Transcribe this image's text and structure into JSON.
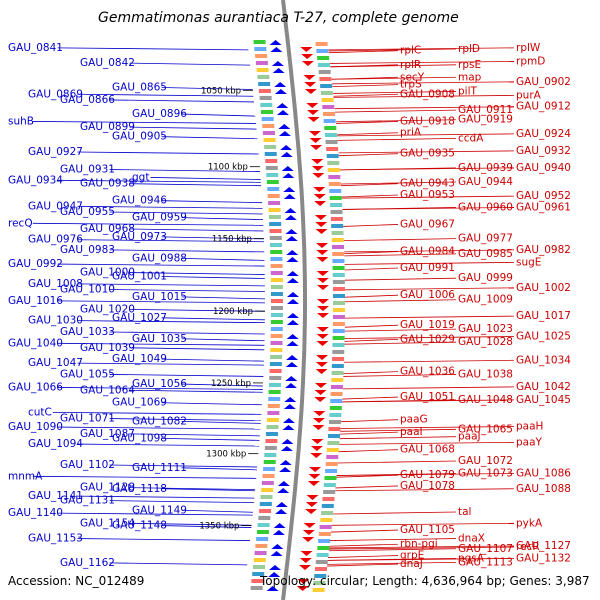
{
  "title": "Gemmatimonas aurantiaca T-27, complete genome",
  "accession": "Accession: NC_012489",
  "summary": "Topology: circular; Length: 4,636,964 bp; Genes: 3,987",
  "colors": {
    "left": "#0000cc",
    "right": "#cc0000",
    "backbone": "#888888"
  },
  "kbp_marks": [
    {
      "label": "1050 kbp",
      "t": 0.103
    },
    {
      "label": "1100 kbp",
      "t": 0.238
    },
    {
      "label": "1150 kbp",
      "t": 0.365
    },
    {
      "label": "1200 kbp",
      "t": 0.493
    },
    {
      "label": "1250 kbp",
      "t": 0.62
    },
    {
      "label": "1300 kbp",
      "t": 0.745
    },
    {
      "label": "1350 kbp",
      "t": 0.872
    }
  ],
  "left_labels": [
    {
      "text": "GAU_0841",
      "t": 0.028
    },
    {
      "text": "GAU_0842",
      "t": 0.055
    },
    {
      "text": "GAU_0865",
      "t": 0.098
    },
    {
      "text": "GAU_0869",
      "t": 0.11
    },
    {
      "text": "GAU_0866",
      "t": 0.12
    },
    {
      "text": "GAU_0896",
      "t": 0.145
    },
    {
      "text": "suhB",
      "t": 0.158
    },
    {
      "text": "GAU_0899",
      "t": 0.168
    },
    {
      "text": "GAU_0905",
      "t": 0.185
    },
    {
      "text": "GAU_0927",
      "t": 0.212
    },
    {
      "text": "GAU_0931",
      "t": 0.243
    },
    {
      "text": "ggt",
      "t": 0.257
    },
    {
      "text": "GAU_0934",
      "t": 0.262
    },
    {
      "text": "GAU_0938",
      "t": 0.268
    },
    {
      "text": "GAU_0946",
      "t": 0.298
    },
    {
      "text": "GAU_0947",
      "t": 0.308
    },
    {
      "text": "GAU_0955",
      "t": 0.318
    },
    {
      "text": "GAU_0959",
      "t": 0.328
    },
    {
      "text": "recQ",
      "t": 0.338
    },
    {
      "text": "GAU_0968",
      "t": 0.348
    },
    {
      "text": "GAU_0973",
      "t": 0.362
    },
    {
      "text": "GAU_0976",
      "t": 0.367
    },
    {
      "text": "GAU_0983",
      "t": 0.385
    },
    {
      "text": "GAU_0988",
      "t": 0.4
    },
    {
      "text": "GAU_0992",
      "t": 0.41
    },
    {
      "text": "GAU_1000",
      "t": 0.425
    },
    {
      "text": "GAU_1001",
      "t": 0.432
    },
    {
      "text": "GAU_1008",
      "t": 0.445
    },
    {
      "text": "GAU_1010",
      "t": 0.455
    },
    {
      "text": "GAU_1015",
      "t": 0.468
    },
    {
      "text": "GAU_1016",
      "t": 0.475
    },
    {
      "text": "GAU_1020",
      "t": 0.49
    },
    {
      "text": "GAU_1027",
      "t": 0.505
    },
    {
      "text": "GAU_1030",
      "t": 0.51
    },
    {
      "text": "GAU_1033",
      "t": 0.53
    },
    {
      "text": "GAU_1035",
      "t": 0.542
    },
    {
      "text": "GAU_1040",
      "t": 0.55
    },
    {
      "text": "GAU_1039",
      "t": 0.558
    },
    {
      "text": "GAU_1049",
      "t": 0.578
    },
    {
      "text": "GAU_1047",
      "t": 0.585
    },
    {
      "text": "GAU_1055",
      "t": 0.605
    },
    {
      "text": "GAU_1056",
      "t": 0.622
    },
    {
      "text": "GAU_1066",
      "t": 0.628
    },
    {
      "text": "GAU_1064",
      "t": 0.633
    },
    {
      "text": "GAU_1069",
      "t": 0.655
    },
    {
      "text": "cutC",
      "t": 0.672
    },
    {
      "text": "GAU_1071",
      "t": 0.683
    },
    {
      "text": "GAU_1082",
      "t": 0.688
    },
    {
      "text": "GAU_1090",
      "t": 0.698
    },
    {
      "text": "GAU_1087",
      "t": 0.71
    },
    {
      "text": "GAU_1098",
      "t": 0.718
    },
    {
      "text": "GAU_1094",
      "t": 0.728
    },
    {
      "text": "GAU_1102",
      "t": 0.765
    },
    {
      "text": "GAU_1111",
      "t": 0.77
    },
    {
      "text": "mnmA",
      "t": 0.785
    },
    {
      "text": "GAU_1128",
      "t": 0.805
    },
    {
      "text": "GAU_1118",
      "t": 0.807
    },
    {
      "text": "GAU_1141",
      "t": 0.82
    },
    {
      "text": "GAU_1131",
      "t": 0.828
    },
    {
      "text": "GAU_1149",
      "t": 0.845
    },
    {
      "text": "GAU_1140",
      "t": 0.85
    },
    {
      "text": "GAU_1154",
      "t": 0.868
    },
    {
      "text": "GAU_1148",
      "t": 0.872
    },
    {
      "text": "GAU_1153",
      "t": 0.895
    },
    {
      "text": "GAU_1162",
      "t": 0.938
    }
  ],
  "right_labels": [
    {
      "text": "rplC",
      "t": 0.033
    },
    {
      "text": "rplD",
      "t": 0.03
    },
    {
      "text": "rplW",
      "t": 0.028
    },
    {
      "text": "rplR",
      "t": 0.058
    },
    {
      "text": "rpsE",
      "t": 0.058
    },
    {
      "text": "rpmD",
      "t": 0.052
    },
    {
      "text": "secY",
      "t": 0.08
    },
    {
      "text": "map",
      "t": 0.08
    },
    {
      "text": "GAU_0902",
      "t": 0.088
    },
    {
      "text": "trpS",
      "t": 0.093
    },
    {
      "text": "pilT",
      "t": 0.105
    },
    {
      "text": "purA",
      "t": 0.112
    },
    {
      "text": "GAU_0908",
      "t": 0.11
    },
    {
      "text": "GAU_0911",
      "t": 0.138
    },
    {
      "text": "GAU_0912",
      "t": 0.132
    },
    {
      "text": "GAU_0918",
      "t": 0.158
    },
    {
      "text": "GAU_0919",
      "t": 0.155
    },
    {
      "text": "GAU_0924",
      "t": 0.18
    },
    {
      "text": "priA",
      "t": 0.178
    },
    {
      "text": "ccdA",
      "t": 0.188
    },
    {
      "text": "GAU_0932",
      "t": 0.21
    },
    {
      "text": "GAU_0935",
      "t": 0.215
    },
    {
      "text": "GAU_0939",
      "t": 0.24
    },
    {
      "text": "GAU_0940",
      "t": 0.24
    },
    {
      "text": "GAU_0943",
      "t": 0.268
    },
    {
      "text": "GAU_0944",
      "t": 0.265
    },
    {
      "text": "GAU_0952",
      "t": 0.29
    },
    {
      "text": "GAU_0953",
      "t": 0.288
    },
    {
      "text": "GAU_0960",
      "t": 0.31
    },
    {
      "text": "GAU_0961",
      "t": 0.31
    },
    {
      "text": "GAU_0967",
      "t": 0.34
    },
    {
      "text": "GAU_0977",
      "t": 0.365
    },
    {
      "text": "GAU_0982",
      "t": 0.385
    },
    {
      "text": "GAU_0984",
      "t": 0.388
    },
    {
      "text": "GAU_0985",
      "t": 0.392
    },
    {
      "text": "sugE",
      "t": 0.407
    },
    {
      "text": "GAU_0991",
      "t": 0.417
    },
    {
      "text": "GAU_0999",
      "t": 0.435
    },
    {
      "text": "GAU_1002",
      "t": 0.452
    },
    {
      "text": "GAU_1006",
      "t": 0.465
    },
    {
      "text": "GAU_1009",
      "t": 0.473
    },
    {
      "text": "GAU_1017",
      "t": 0.502
    },
    {
      "text": "GAU_1019",
      "t": 0.518
    },
    {
      "text": "GAU_1023",
      "t": 0.525
    },
    {
      "text": "GAU_1025",
      "t": 0.538
    },
    {
      "text": "GAU_1029",
      "t": 0.543
    },
    {
      "text": "GAU_1028",
      "t": 0.548
    },
    {
      "text": "GAU_1034",
      "t": 0.58
    },
    {
      "text": "GAU_1036",
      "t": 0.6
    },
    {
      "text": "GAU_1038",
      "t": 0.605
    },
    {
      "text": "GAU_1042",
      "t": 0.627
    },
    {
      "text": "GAU_1051",
      "t": 0.645
    },
    {
      "text": "GAU_1048",
      "t": 0.65
    },
    {
      "text": "GAU_1045",
      "t": 0.65
    },
    {
      "text": "paaG",
      "t": 0.685
    },
    {
      "text": "GAU_1065",
      "t": 0.702
    },
    {
      "text": "paaH",
      "t": 0.697
    },
    {
      "text": "paaI",
      "t": 0.707
    },
    {
      "text": "paaJ",
      "t": 0.715
    },
    {
      "text": "paaY",
      "t": 0.725
    },
    {
      "text": "GAU_1068",
      "t": 0.738
    },
    {
      "text": "GAU_1072",
      "t": 0.758
    },
    {
      "text": "GAU_1086",
      "t": 0.78
    },
    {
      "text": "GAU_1079",
      "t": 0.783
    },
    {
      "text": "GAU_1073",
      "t": 0.78
    },
    {
      "text": "GAU_1088",
      "t": 0.807
    },
    {
      "text": "GAU_1078",
      "t": 0.802
    },
    {
      "text": "tal",
      "t": 0.848
    },
    {
      "text": "pykA",
      "t": 0.868
    },
    {
      "text": "GAU_1105",
      "t": 0.88
    },
    {
      "text": "dnaX",
      "t": 0.895
    },
    {
      "text": "recR",
      "t": 0.91
    },
    {
      "text": "rbn-pgi",
      "t": 0.905
    },
    {
      "text": "GAU_1107",
      "t": 0.913
    },
    {
      "text": "GAU_1127",
      "t": 0.908
    },
    {
      "text": "grpE",
      "t": 0.925
    },
    {
      "text": "pgsA",
      "t": 0.93
    },
    {
      "text": "GAU_1132",
      "t": 0.93
    },
    {
      "text": "dnaJ",
      "t": 0.94
    },
    {
      "text": "GAU_1113",
      "t": 0.937
    }
  ]
}
